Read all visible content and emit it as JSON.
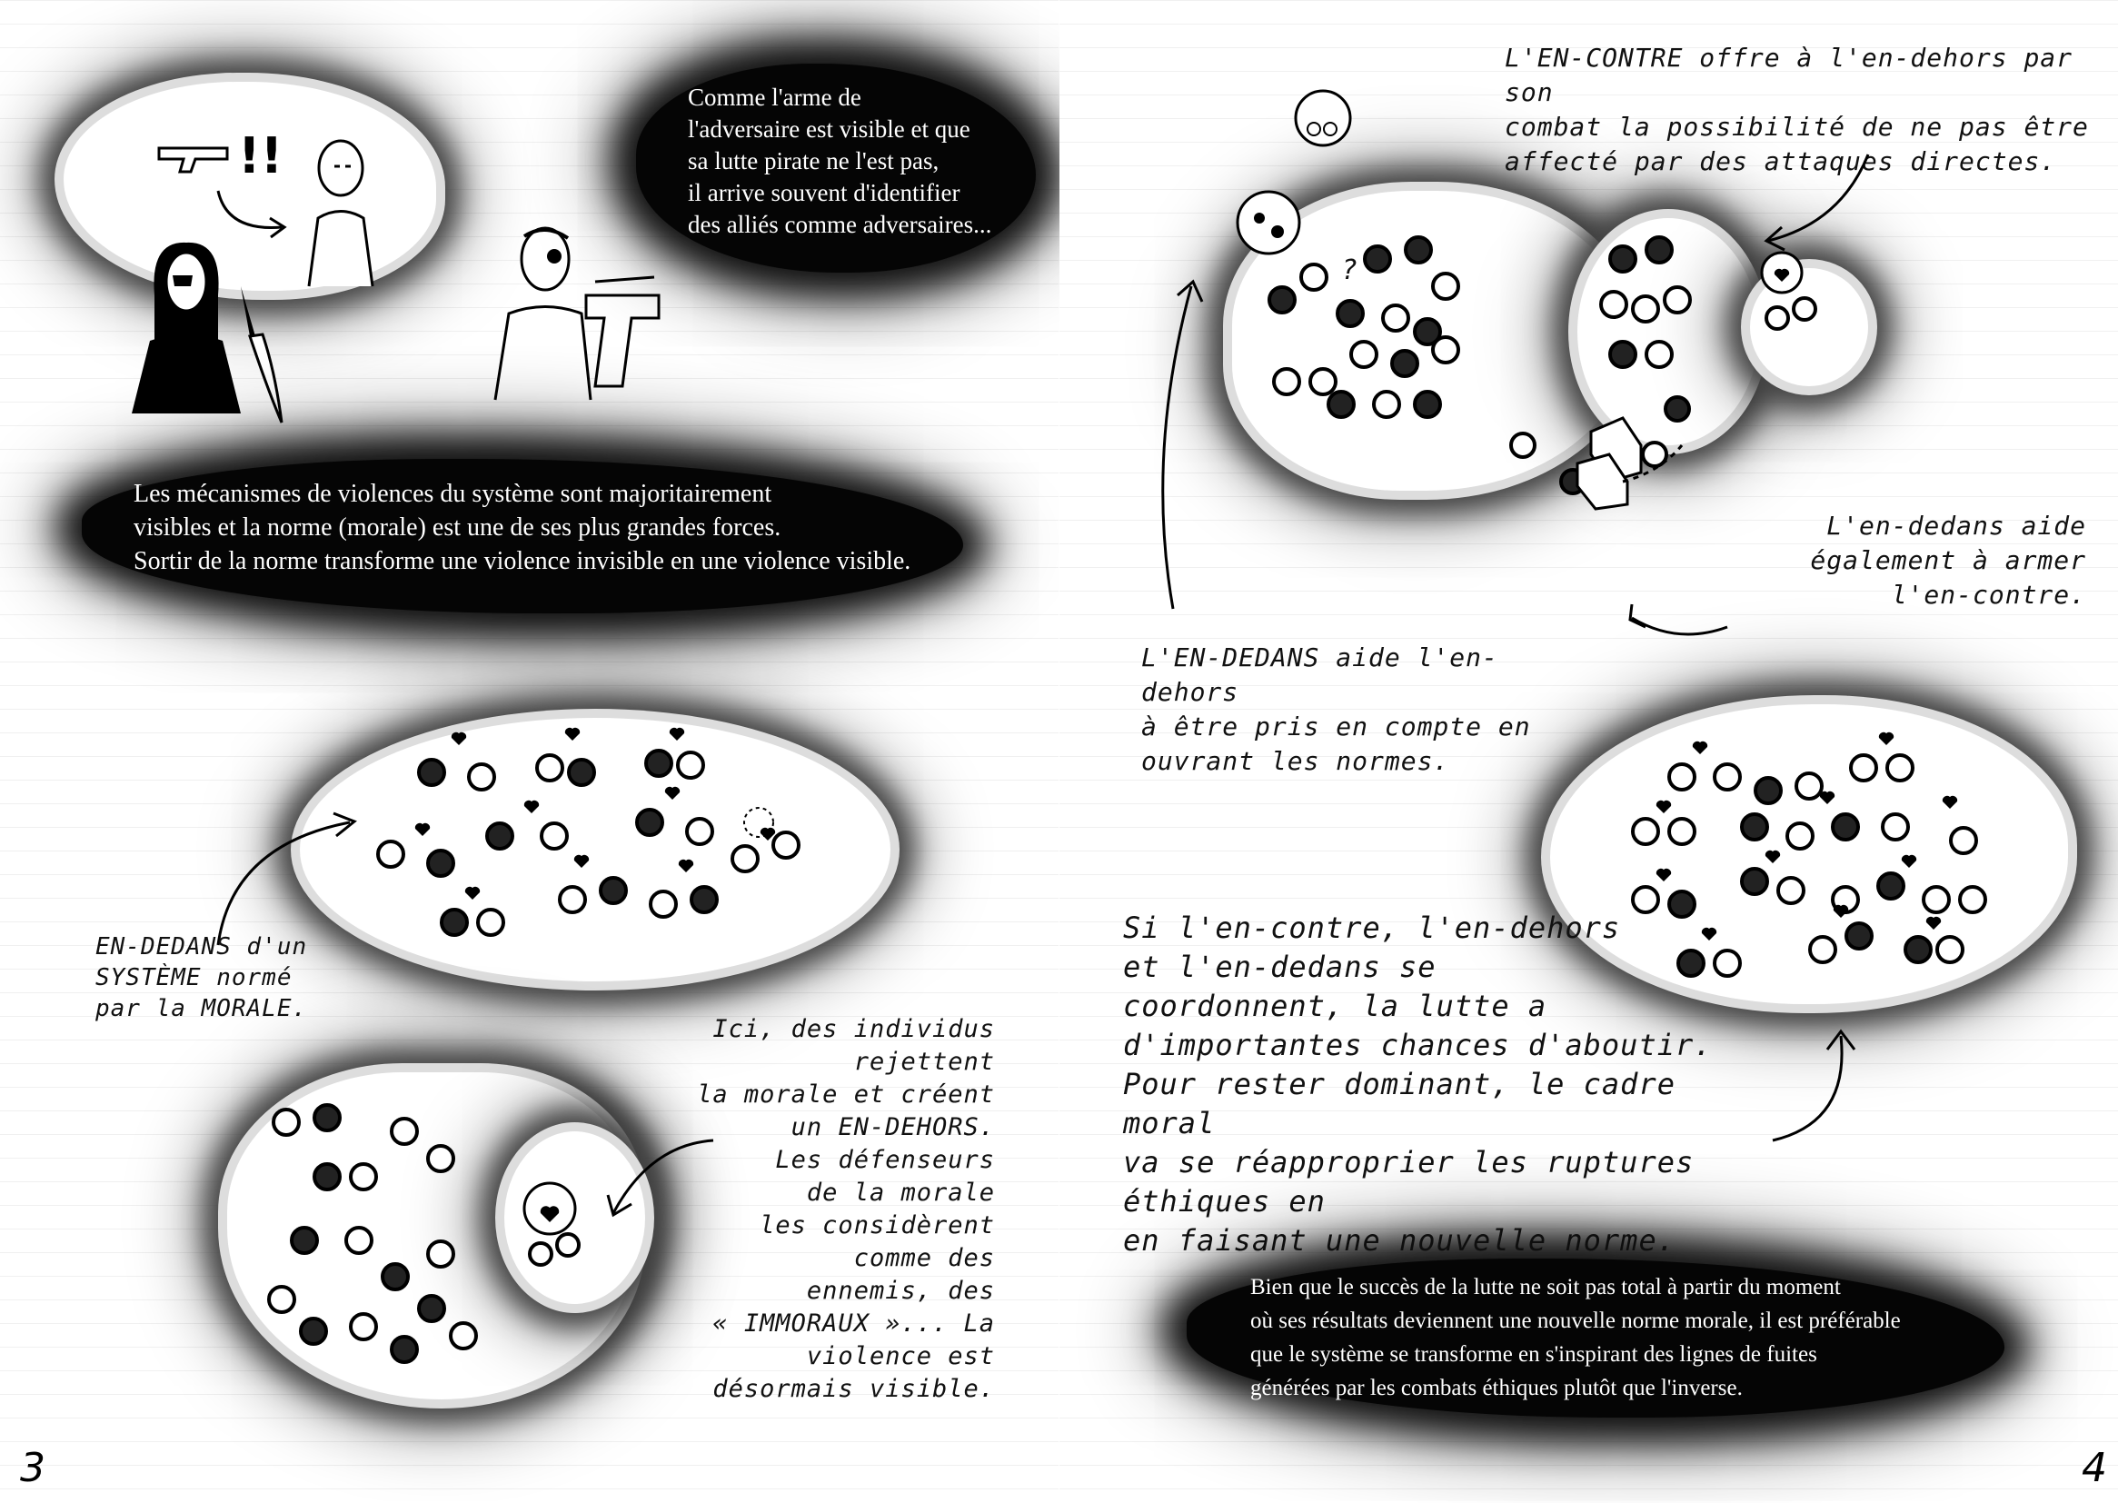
{
  "left_page": {
    "caption_weapon": "Comme l'arme de\nl'adversaire est visible et que\nsa lutte pirate ne l'est pas,\nil arrive souvent d'identifier\ndes alliés comme adversaires...",
    "exclaim": "!!",
    "caption_mechanisms": "Les mécanismes de violences du système sont majoritairement\nvisibles et la norme (morale) est une de ses plus grandes forces.\nSortir de la norme transforme une violence invisible en une violence visible.",
    "label_en_dedans": "EN-DEDANS d'un\nSYSTÈME normé\npar la MORALE.",
    "text_individus": "Ici, des individus rejettent\nla morale et créent\nun EN-DEHORS.\nLes défenseurs\nde la morale\nles considèrent\ncomme des\nennemis, des\n« IMMORAUX »... La\nviolence est\ndésormais visible.",
    "page_number": "3"
  },
  "right_page": {
    "text_en_contre": "L'EN-CONTRE offre à l'en-dehors par son\ncombat la possibilité de ne pas être\naffecté par des attaques directes.",
    "text_en_dedans_arme": "L'en-dedans aide\négalement à armer\nl'en-contre.",
    "text_en_dedans_aide": "L'EN-DEDANS aide l'en-dehors\nà être pris en compte en\nouvrant les normes.",
    "question_mark": "?",
    "text_coordonnent": "Si l'en-contre, l'en-dehors\net l'en-dedans se\ncoordonnent, la lutte a\nd'importantes chances d'aboutir.\nPour rester dominant, le cadre moral\nva se réapproprier les ruptures éthiques en\nen faisant une nouvelle norme.",
    "caption_succes": "Bien que le succès de la lutte ne soit pas total à partir du moment\noù ses résultats deviennent une nouvelle norme morale, il est préférable\nque le système se transforme en s'inspirant des lignes de fuites\ngénérées par les combats éthiques plutôt que l'inverse.",
    "page_number": "4"
  },
  "colors": {
    "ink": "#000000",
    "paper": "#ffffff"
  },
  "icons": [
    "pistol-icon",
    "knife-icon",
    "heart-icon",
    "box-icon",
    "speech-bubble-icon",
    "circle-person-icon"
  ]
}
